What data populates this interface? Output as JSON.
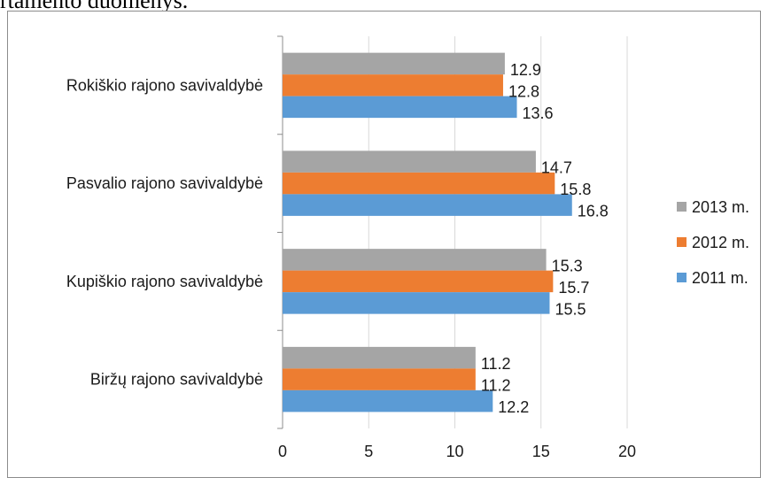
{
  "header": {
    "partial_text": "rtamento duomenys."
  },
  "chart_data": {
    "type": "bar",
    "orientation": "horizontal",
    "categories": [
      "Biržų rajono savivaldybė",
      "Kupiškio rajono savivaldybė",
      "Pasvalio rajono savivaldybė",
      "Rokiškio rajono savivaldybė"
    ],
    "series": [
      {
        "name": "2011 m.",
        "color": "#5b9bd5",
        "values": [
          12.2,
          15.5,
          16.8,
          13.6
        ],
        "labels": [
          "12.2",
          "15.5",
          "16.8",
          "13.6"
        ]
      },
      {
        "name": "2012 m.",
        "color": "#ed7d31",
        "values": [
          11.2,
          15.7,
          15.8,
          12.8
        ],
        "labels": [
          "11.2",
          "15.7",
          "15.8",
          "12.8"
        ]
      },
      {
        "name": "2013 m.",
        "color": "#a5a5a5",
        "values": [
          11.2,
          15.3,
          14.7,
          12.9
        ],
        "labels": [
          "11.2",
          "15.3",
          "14.7",
          "12.9"
        ]
      }
    ],
    "legend_order": [
      "2013 m.",
      "2012 m.",
      "2011 m."
    ],
    "xlim": [
      0,
      20
    ],
    "xticks": [
      0,
      5,
      10,
      15,
      20
    ],
    "xlabel": "",
    "ylabel": "",
    "grid": "vertical",
    "legend_position": "right"
  }
}
